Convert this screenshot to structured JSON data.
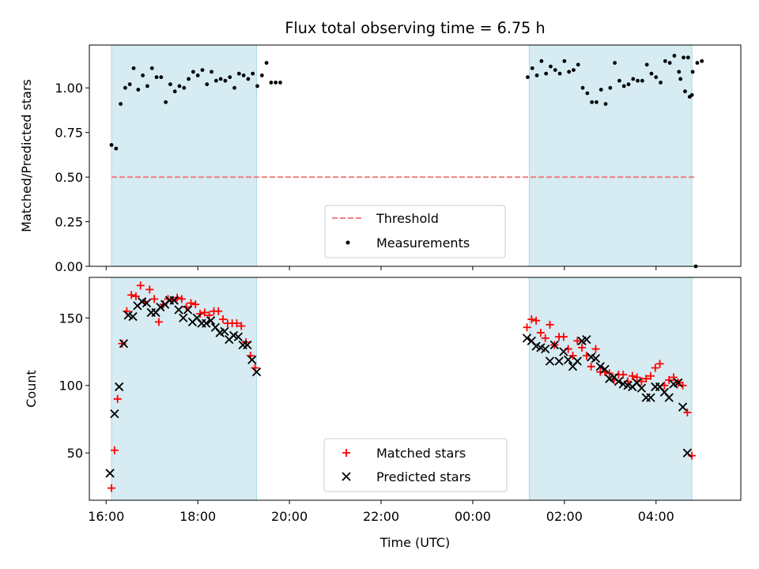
{
  "title": "Flux total observing time = 6.75 h",
  "colors": {
    "shade": "#add8e6",
    "threshold": "#f08080",
    "measurement": "#000000",
    "matched": "#ff0000",
    "predicted": "#000000"
  },
  "chart_data": [
    {
      "type": "scatter",
      "ylabel": "Matched/Predicted stars",
      "ylim": [
        0,
        1.24
      ],
      "yticks": [
        0.0,
        0.25,
        0.5,
        0.75,
        1.0
      ],
      "ytick_labels": [
        "0.00",
        "0.25",
        "0.50",
        "0.75",
        "1.00"
      ],
      "shaded_regions": [
        [
          "16:07",
          "19:17"
        ],
        [
          "01:14",
          "04:47"
        ]
      ],
      "threshold": {
        "y": 0.5,
        "x": [
          "16:07",
          "04:52"
        ]
      },
      "legend": {
        "position": "lower-center",
        "entries": [
          "Threshold",
          "Measurements"
        ]
      },
      "series": [
        {
          "name": "Measurements",
          "points": [
            [
              "16:07",
              0.68
            ],
            [
              "16:13",
              0.66
            ],
            [
              "16:19",
              0.91
            ],
            [
              "16:25",
              1.0
            ],
            [
              "16:31",
              1.02
            ],
            [
              "16:36",
              1.11
            ],
            [
              "16:42",
              0.99
            ],
            [
              "16:48",
              1.07
            ],
            [
              "16:54",
              1.01
            ],
            [
              "17:00",
              1.11
            ],
            [
              "17:06",
              1.06
            ],
            [
              "17:12",
              1.06
            ],
            [
              "17:18",
              0.92
            ],
            [
              "17:24",
              1.02
            ],
            [
              "17:30",
              0.98
            ],
            [
              "17:36",
              1.01
            ],
            [
              "17:42",
              1.0
            ],
            [
              "17:48",
              1.05
            ],
            [
              "17:54",
              1.09
            ],
            [
              "18:00",
              1.07
            ],
            [
              "18:06",
              1.1
            ],
            [
              "18:12",
              1.02
            ],
            [
              "18:18",
              1.09
            ],
            [
              "18:24",
              1.04
            ],
            [
              "18:30",
              1.05
            ],
            [
              "18:36",
              1.04
            ],
            [
              "18:42",
              1.06
            ],
            [
              "18:48",
              1.0
            ],
            [
              "18:54",
              1.08
            ],
            [
              "19:00",
              1.07
            ],
            [
              "19:06",
              1.05
            ],
            [
              "19:12",
              1.08
            ],
            [
              "19:18",
              1.01
            ],
            [
              "19:24",
              1.07
            ],
            [
              "19:30",
              1.14
            ],
            [
              "19:36",
              1.03
            ],
            [
              "19:42",
              1.03
            ],
            [
              "19:48",
              1.03
            ],
            [
              "01:12",
              1.06
            ],
            [
              "01:18",
              1.11
            ],
            [
              "01:24",
              1.07
            ],
            [
              "01:30",
              1.15
            ],
            [
              "01:36",
              1.08
            ],
            [
              "01:42",
              1.12
            ],
            [
              "01:48",
              1.1
            ],
            [
              "01:54",
              1.08
            ],
            [
              "02:00",
              1.15
            ],
            [
              "02:06",
              1.09
            ],
            [
              "02:12",
              1.1
            ],
            [
              "02:18",
              1.13
            ],
            [
              "02:24",
              1.0
            ],
            [
              "02:30",
              0.97
            ],
            [
              "02:36",
              0.92
            ],
            [
              "02:42",
              0.92
            ],
            [
              "02:48",
              0.99
            ],
            [
              "02:54",
              0.91
            ],
            [
              "03:00",
              1.0
            ],
            [
              "03:06",
              1.14
            ],
            [
              "03:12",
              1.04
            ],
            [
              "03:18",
              1.01
            ],
            [
              "03:24",
              1.02
            ],
            [
              "03:30",
              1.05
            ],
            [
              "03:36",
              1.04
            ],
            [
              "03:42",
              1.04
            ],
            [
              "03:48",
              1.13
            ],
            [
              "03:54",
              1.08
            ],
            [
              "04:00",
              1.06
            ],
            [
              "04:06",
              1.03
            ],
            [
              "04:12",
              1.15
            ],
            [
              "04:18",
              1.14
            ],
            [
              "04:24",
              1.18
            ],
            [
              "04:30",
              1.09
            ],
            [
              "04:36",
              1.17
            ],
            [
              "04:42",
              1.17
            ],
            [
              "04:48",
              1.09
            ],
            [
              "04:54",
              1.14
            ],
            [
              "05:00",
              1.15
            ],
            [
              "04:32",
              1.05
            ],
            [
              "04:38",
              0.98
            ],
            [
              "04:44",
              0.95
            ],
            [
              "04:47",
              0.96
            ],
            [
              "04:52",
              0.0
            ]
          ]
        }
      ]
    },
    {
      "type": "scatter",
      "ylabel": "Count",
      "xlabel": "Time (UTC)",
      "ylim": [
        15,
        180
      ],
      "yticks": [
        50,
        100,
        150
      ],
      "ytick_labels": [
        "50",
        "100",
        "150"
      ],
      "xlim": [
        "15:38",
        "05:51"
      ],
      "xticks": [
        "16:00",
        "18:00",
        "20:00",
        "22:00",
        "00:00",
        "02:00",
        "04:00"
      ],
      "xtick_labels": [
        "16:00",
        "18:00",
        "20:00",
        "22:00",
        "00:00",
        "02:00",
        "04:00"
      ],
      "shaded_regions": [
        [
          "16:07",
          "19:17"
        ],
        [
          "01:14",
          "04:47"
        ]
      ],
      "legend": {
        "position": "lower-center",
        "entries": [
          "Matched stars",
          "Predicted stars"
        ]
      },
      "series": [
        {
          "name": "Matched stars",
          "marker": "plus",
          "points": [
            [
              "16:07",
              24
            ],
            [
              "16:11",
              52
            ],
            [
              "16:15",
              90
            ],
            [
              "16:21",
              131
            ],
            [
              "16:27",
              155
            ],
            [
              "16:33",
              167
            ],
            [
              "16:39",
              166
            ],
            [
              "16:45",
              174
            ],
            [
              "16:51",
              162
            ],
            [
              "16:57",
              171
            ],
            [
              "17:03",
              164
            ],
            [
              "17:09",
              147
            ],
            [
              "17:15",
              160
            ],
            [
              "17:21",
              164
            ],
            [
              "17:27",
              163
            ],
            [
              "17:33",
              165
            ],
            [
              "17:39",
              164
            ],
            [
              "17:45",
              158
            ],
            [
              "17:51",
              161
            ],
            [
              "17:57",
              160
            ],
            [
              "18:03",
              153
            ],
            [
              "18:09",
              154
            ],
            [
              "18:15",
              152
            ],
            [
              "18:21",
              155
            ],
            [
              "18:27",
              155
            ],
            [
              "18:33",
              149
            ],
            [
              "18:39",
              146
            ],
            [
              "18:45",
              146
            ],
            [
              "18:51",
              146
            ],
            [
              "18:57",
              144
            ],
            [
              "19:03",
              132
            ],
            [
              "19:09",
              122
            ],
            [
              "19:15",
              113
            ],
            [
              "01:11",
              143
            ],
            [
              "01:17",
              149
            ],
            [
              "01:23",
              148
            ],
            [
              "01:29",
              139
            ],
            [
              "01:35",
              135
            ],
            [
              "01:41",
              145
            ],
            [
              "01:47",
              130
            ],
            [
              "01:53",
              136
            ],
            [
              "01:59",
              136
            ],
            [
              "02:05",
              127
            ],
            [
              "02:11",
              122
            ],
            [
              "02:17",
              133
            ],
            [
              "02:23",
              128
            ],
            [
              "02:29",
              122
            ],
            [
              "02:35",
              114
            ],
            [
              "02:41",
              127
            ],
            [
              "02:47",
              110
            ],
            [
              "02:53",
              110
            ],
            [
              "02:59",
              109
            ],
            [
              "03:05",
              104
            ],
            [
              "03:11",
              108
            ],
            [
              "03:17",
              108
            ],
            [
              "03:23",
              103
            ],
            [
              "03:29",
              107
            ],
            [
              "03:35",
              106
            ],
            [
              "03:41",
              103
            ],
            [
              "03:47",
              105
            ],
            [
              "03:53",
              107
            ],
            [
              "03:59",
              113
            ],
            [
              "04:05",
              116
            ],
            [
              "04:11",
              100
            ],
            [
              "04:17",
              104
            ],
            [
              "04:23",
              106
            ],
            [
              "04:29",
              102
            ],
            [
              "04:35",
              100
            ],
            [
              "04:41",
              80
            ],
            [
              "04:47",
              48
            ]
          ]
        },
        {
          "name": "Predicted stars",
          "marker": "x",
          "points": [
            [
              "16:05",
              35
            ],
            [
              "16:11",
              79
            ],
            [
              "16:17",
              99
            ],
            [
              "16:23",
              131
            ],
            [
              "16:29",
              152
            ],
            [
              "16:35",
              151
            ],
            [
              "16:41",
              159
            ],
            [
              "16:47",
              162
            ],
            [
              "16:53",
              161
            ],
            [
              "16:59",
              154
            ],
            [
              "17:05",
              154
            ],
            [
              "17:11",
              158
            ],
            [
              "17:17",
              160
            ],
            [
              "17:23",
              163
            ],
            [
              "17:29",
              163
            ],
            [
              "17:35",
              156
            ],
            [
              "17:41",
              150
            ],
            [
              "17:47",
              156
            ],
            [
              "17:53",
              147
            ],
            [
              "17:59",
              150
            ],
            [
              "18:05",
              146
            ],
            [
              "18:11",
              146
            ],
            [
              "18:17",
              148
            ],
            [
              "18:23",
              143
            ],
            [
              "18:29",
              139
            ],
            [
              "18:35",
              140
            ],
            [
              "18:41",
              134
            ],
            [
              "18:47",
              137
            ],
            [
              "18:53",
              136
            ],
            [
              "18:59",
              130
            ],
            [
              "19:05",
              130
            ],
            [
              "19:11",
              119
            ],
            [
              "19:17",
              110
            ],
            [
              "01:11",
              135
            ],
            [
              "01:17",
              133
            ],
            [
              "01:23",
              129
            ],
            [
              "01:29",
              128
            ],
            [
              "01:35",
              127
            ],
            [
              "01:41",
              118
            ],
            [
              "01:47",
              130
            ],
            [
              "01:53",
              118
            ],
            [
              "01:59",
              125
            ],
            [
              "02:05",
              119
            ],
            [
              "02:11",
              114
            ],
            [
              "02:17",
              118
            ],
            [
              "02:23",
              133
            ],
            [
              "02:29",
              134
            ],
            [
              "02:35",
              121
            ],
            [
              "02:41",
              120
            ],
            [
              "02:47",
              114
            ],
            [
              "02:53",
              112
            ],
            [
              "02:59",
              105
            ],
            [
              "03:05",
              106
            ],
            [
              "03:11",
              103
            ],
            [
              "03:17",
              101
            ],
            [
              "03:23",
              100
            ],
            [
              "03:29",
              99
            ],
            [
              "03:35",
              102
            ],
            [
              "03:41",
              98
            ],
            [
              "03:47",
              91
            ],
            [
              "03:53",
              91
            ],
            [
              "03:59",
              99
            ],
            [
              "04:05",
              99
            ],
            [
              "04:11",
              95
            ],
            [
              "04:17",
              91
            ],
            [
              "04:23",
              101
            ],
            [
              "04:29",
              102
            ],
            [
              "04:35",
              84
            ],
            [
              "04:41",
              50
            ]
          ]
        }
      ]
    }
  ]
}
